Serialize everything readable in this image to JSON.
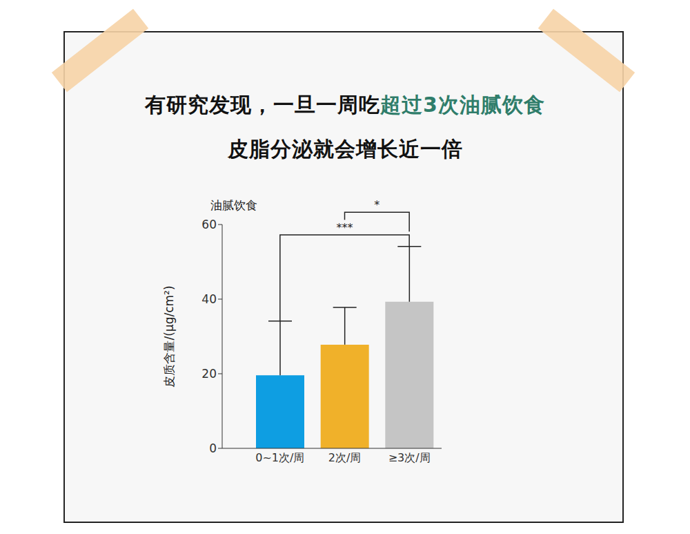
{
  "chart_data": {
    "type": "bar",
    "title": "有研究发现，一旦一周吃超过3次油腻饮食",
    "title_highlight": "超过3次油腻饮食",
    "subtitle": "皮脂分泌就会增长近一倍",
    "plot_title": "油腻饮食",
    "y_label": "皮质含量/(μg/cm²)",
    "categories": [
      "0~1次/周",
      "2次/周",
      "≥3次/周"
    ],
    "values": [
      19.6,
      27.8,
      39.3
    ],
    "errors": [
      14.5,
      10.0,
      14.8
    ],
    "colors": [
      "#0e9ee2",
      "#f0b12a",
      "#c5c5c5"
    ],
    "ylim": [
      0,
      60
    ],
    "yticks": [
      0,
      20,
      40,
      60
    ],
    "grid": false,
    "annotations": [
      {
        "text": "***",
        "from": "0~1次/周",
        "to": "≥3次/周",
        "y": 57.2
      },
      {
        "text": "*",
        "from": "2次/周",
        "to": "≥3次/周",
        "y": 63.3
      }
    ]
  }
}
